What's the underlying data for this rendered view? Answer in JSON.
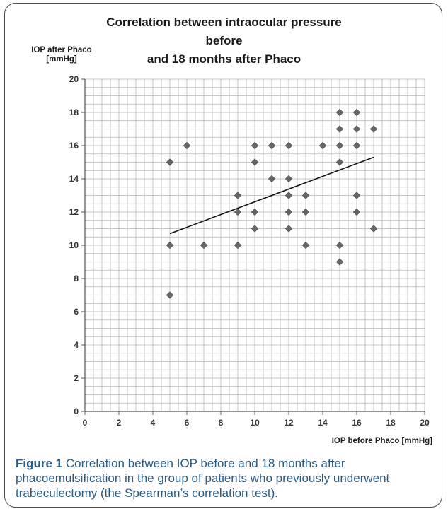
{
  "chart_data": {
    "type": "scatter",
    "title_lines": [
      "Correlation between intraocular pressure",
      "before",
      "and 18 months after Phaco"
    ],
    "xlabel": "IOP before Phaco [mmHg]",
    "ylabel_lines": [
      "IOP after Phaco",
      "[mmHg]"
    ],
    "xlim": [
      0,
      20
    ],
    "ylim": [
      0,
      20
    ],
    "x_ticks": [
      0,
      2,
      4,
      6,
      8,
      10,
      12,
      14,
      16,
      18,
      20
    ],
    "y_ticks": [
      0,
      2,
      4,
      6,
      8,
      10,
      12,
      14,
      16,
      18,
      20
    ],
    "grid": true,
    "minor_grid_step": 0.5,
    "marker": "diamond",
    "marker_color": "#666666",
    "trendline": {
      "x": [
        5,
        17
      ],
      "y": [
        10.7,
        15.3
      ]
    },
    "points": [
      {
        "x": 5,
        "y": 15
      },
      {
        "x": 5,
        "y": 10
      },
      {
        "x": 5,
        "y": 7
      },
      {
        "x": 6,
        "y": 16
      },
      {
        "x": 7,
        "y": 10
      },
      {
        "x": 9,
        "y": 13
      },
      {
        "x": 9,
        "y": 12
      },
      {
        "x": 9,
        "y": 10
      },
      {
        "x": 10,
        "y": 16
      },
      {
        "x": 10,
        "y": 15
      },
      {
        "x": 10,
        "y": 12
      },
      {
        "x": 10,
        "y": 11
      },
      {
        "x": 11,
        "y": 16
      },
      {
        "x": 11,
        "y": 14
      },
      {
        "x": 12,
        "y": 16
      },
      {
        "x": 12,
        "y": 14
      },
      {
        "x": 12,
        "y": 13
      },
      {
        "x": 12,
        "y": 12
      },
      {
        "x": 12,
        "y": 11
      },
      {
        "x": 13,
        "y": 13
      },
      {
        "x": 13,
        "y": 12
      },
      {
        "x": 13,
        "y": 10
      },
      {
        "x": 14,
        "y": 16
      },
      {
        "x": 15,
        "y": 18
      },
      {
        "x": 15,
        "y": 17
      },
      {
        "x": 15,
        "y": 16
      },
      {
        "x": 15,
        "y": 15
      },
      {
        "x": 15,
        "y": 10
      },
      {
        "x": 15,
        "y": 9
      },
      {
        "x": 16,
        "y": 18
      },
      {
        "x": 16,
        "y": 17
      },
      {
        "x": 16,
        "y": 16
      },
      {
        "x": 16,
        "y": 13
      },
      {
        "x": 16,
        "y": 12
      },
      {
        "x": 17,
        "y": 17
      },
      {
        "x": 17,
        "y": 11
      }
    ]
  },
  "caption": {
    "label": "Figure 1",
    "text": " Correlation between IOP before and 18 months after phacoemulsification in the group of patients who previously underwent trabeculectomy (the Spearman’s correlation test)."
  }
}
